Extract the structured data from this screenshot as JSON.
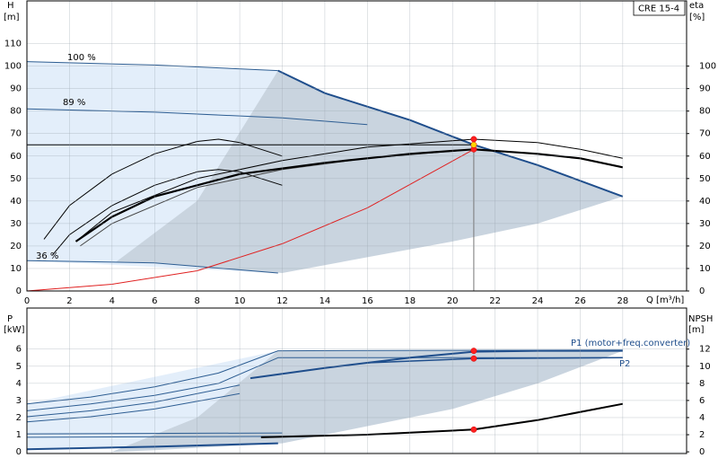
{
  "chart_data": [
    {
      "type": "line",
      "title": "CRE 15-4",
      "ylabel": "H",
      "yunit": "[m]",
      "y2label": "eta",
      "y2unit": "[%]",
      "xlabel": "Q [m³/h]",
      "xlim": [
        0,
        31
      ],
      "xticks": [
        0,
        2,
        4,
        6,
        8,
        10,
        12,
        14,
        16,
        18,
        20,
        22,
        24,
        26,
        28
      ],
      "ylim": [
        0,
        129
      ],
      "yticks": [
        0,
        10,
        20,
        30,
        40,
        50,
        60,
        70,
        80,
        90,
        100,
        110
      ],
      "y2lim": [
        0,
        129
      ],
      "y2ticks": [
        0,
        10,
        20,
        30,
        40,
        50,
        60,
        70,
        80,
        90,
        100
      ],
      "grid": true,
      "annotations": [
        "100 %",
        "89 %",
        "36 %"
      ],
      "series": [
        {
          "style": "area",
          "color": "#e3eefa",
          "x": [
            0,
            11.8,
            11.8,
            0
          ],
          "values": [
            102,
            98,
            8,
            13.5
          ]
        },
        {
          "style": "area",
          "color": "#c9d4df",
          "x": [
            4.2,
            8,
            11.8,
            14,
            18,
            21,
            24,
            28,
            24,
            20,
            16,
            12,
            6
          ],
          "values": [
            13,
            40,
            98,
            88,
            76,
            65,
            56,
            42,
            30,
            22,
            15,
            8,
            12.5
          ]
        },
        {
          "style": "line",
          "color": "#2d5d92",
          "width": 1,
          "x": [
            0,
            6,
            11.8
          ],
          "values": [
            102,
            100.5,
            98
          ]
        },
        {
          "style": "line",
          "color": "#2d5d92",
          "width": 1,
          "x": [
            0,
            6,
            12,
            16
          ],
          "values": [
            81,
            79.5,
            77,
            74
          ]
        },
        {
          "style": "line",
          "color": "#2d5d92",
          "width": 1,
          "x": [
            0,
            6,
            11.8
          ],
          "values": [
            13.5,
            12.5,
            8
          ]
        },
        {
          "style": "line",
          "color": "#1f4e8c",
          "width": 2,
          "x": [
            11.8,
            14,
            18,
            21,
            24,
            28
          ],
          "values": [
            98,
            88,
            76,
            65,
            56,
            42
          ]
        },
        {
          "style": "line",
          "color": "#e02020",
          "width": 1,
          "x": [
            0,
            4,
            8,
            12,
            16,
            21
          ],
          "values": [
            0,
            3,
            9,
            21,
            37,
            63
          ]
        },
        {
          "style": "line",
          "color": "#000000",
          "width": 1,
          "x": [
            0,
            21
          ],
          "values": [
            65,
            65
          ]
        },
        {
          "style": "line",
          "color": "#777777",
          "width": 1,
          "x": [
            21,
            21
          ],
          "values": [
            0,
            65
          ]
        },
        {
          "style": "line",
          "color": "#000000",
          "width": 1,
          "axis": "y2",
          "x": [
            0.8,
            2,
            4,
            6,
            8,
            9,
            10,
            12
          ],
          "values": [
            23,
            38,
            52,
            61,
            66.5,
            67.5,
            66,
            60
          ]
        },
        {
          "style": "line",
          "color": "#000000",
          "width": 1,
          "axis": "y2",
          "x": [
            1.2,
            2,
            4,
            6,
            8,
            9,
            10,
            12
          ],
          "values": [
            16,
            25,
            38,
            47,
            53,
            54,
            53,
            47
          ]
        },
        {
          "style": "line",
          "color": "#444444",
          "width": 1,
          "axis": "y2",
          "x": [
            2.5,
            4,
            8,
            12,
            16,
            21
          ],
          "values": [
            20,
            30,
            46,
            54,
            59,
            63
          ]
        },
        {
          "style": "line",
          "color": "#000000",
          "width": 1,
          "axis": "y2",
          "x": [
            2.3,
            4,
            8,
            12,
            16,
            21,
            24,
            26,
            28
          ],
          "values": [
            22,
            35,
            50,
            58,
            64,
            67.5,
            66,
            63,
            59
          ]
        },
        {
          "style": "line",
          "color": "#000000",
          "width": 2.2,
          "axis": "y2",
          "x": [
            2.3,
            4,
            6,
            10,
            14,
            18,
            21,
            24,
            26,
            28
          ],
          "values": [
            22,
            33,
            42,
            52,
            57,
            61,
            63,
            61,
            59,
            55
          ]
        },
        {
          "style": "points",
          "color": "#ff2020",
          "x": [
            21,
            21
          ],
          "values": [
            67.5,
            63
          ]
        },
        {
          "style": "points",
          "color": "#ffd700",
          "x": [
            21
          ],
          "values": [
            65
          ]
        }
      ]
    },
    {
      "type": "line",
      "ylabel": "P",
      "yunit": "[kW]",
      "y2label": "NPSH",
      "y2unit": "[m]",
      "xlim": [
        0,
        31
      ],
      "xticks": [
        0,
        2,
        4,
        6,
        8,
        10,
        12,
        14,
        16,
        18,
        20,
        22,
        24,
        26,
        28
      ],
      "ylim": [
        -0.1,
        8.4
      ],
      "yticks": [
        0,
        1,
        2,
        3,
        4,
        5,
        6
      ],
      "y2lim": [
        -0.2,
        16.8
      ],
      "y2ticks": [
        0,
        2,
        4,
        6,
        8,
        10,
        12
      ],
      "grid": true,
      "annotations": [
        "P1 (motor+freq.converter)",
        "P2"
      ],
      "series": [
        {
          "style": "area",
          "color": "#e3eefa",
          "x": [
            0,
            11.8,
            11.8,
            0
          ],
          "values": [
            2.8,
            5.9,
            0.5,
            0.15
          ]
        },
        {
          "style": "area",
          "color": "#c9d4df",
          "x": [
            4,
            8,
            11.8,
            28,
            24,
            20,
            16,
            12,
            6
          ],
          "values": [
            0,
            2,
            5.9,
            5.9,
            4,
            2.5,
            1.5,
            0.5,
            0.1
          ]
        },
        {
          "style": "line",
          "color": "#2d5d92",
          "width": 1,
          "x": [
            0,
            3,
            6,
            9,
            11.8,
            28
          ],
          "values": [
            2.8,
            3.2,
            3.8,
            4.6,
            5.9,
            5.95
          ]
        },
        {
          "style": "line",
          "color": "#2d5d92",
          "width": 1,
          "x": [
            0,
            3,
            6,
            9,
            11.8,
            28
          ],
          "values": [
            2.4,
            2.8,
            3.3,
            4.0,
            5.5,
            5.5
          ]
        },
        {
          "style": "line",
          "color": "#2d5d92",
          "width": 1,
          "x": [
            0,
            3,
            6,
            10
          ],
          "values": [
            2.05,
            2.4,
            2.9,
            3.9
          ]
        },
        {
          "style": "line",
          "color": "#2d5d92",
          "width": 1,
          "x": [
            0,
            3,
            6,
            10
          ],
          "values": [
            1.75,
            2.05,
            2.5,
            3.4
          ]
        },
        {
          "style": "line",
          "color": "#2d5d92",
          "width": 1,
          "x": [
            0,
            12
          ],
          "values": [
            1.05,
            1.1
          ]
        },
        {
          "style": "line",
          "color": "#2d5d92",
          "width": 1,
          "x": [
            0,
            12
          ],
          "values": [
            0.85,
            0.9
          ]
        },
        {
          "style": "line",
          "color": "#1f4e8c",
          "width": 2,
          "x": [
            0,
            6,
            11.8
          ],
          "values": [
            0.15,
            0.3,
            0.5
          ]
        },
        {
          "style": "line",
          "color": "#1f4e8c",
          "width": 2,
          "x": [
            10.5,
            14,
            18,
            21,
            24,
            28
          ],
          "values": [
            4.3,
            4.9,
            5.5,
            5.85,
            5.9,
            5.9
          ]
        },
        {
          "style": "line",
          "color": "#1f4e8c",
          "width": 1.5,
          "x": [
            16,
            21,
            28
          ],
          "values": [
            5.2,
            5.45,
            5.5
          ]
        },
        {
          "style": "line",
          "color": "#000000",
          "width": 2,
          "axis": "y2",
          "x": [
            11,
            16,
            21,
            24,
            28
          ],
          "values": [
            1.7,
            2.0,
            2.6,
            3.7,
            5.6
          ]
        },
        {
          "style": "points",
          "color": "#ff2020",
          "x": [
            21,
            21
          ],
          "values": [
            5.9,
            5.45
          ]
        },
        {
          "style": "points",
          "color": "#ff2020",
          "axis": "y2",
          "x": [
            21
          ],
          "values": [
            2.6
          ]
        }
      ]
    }
  ]
}
